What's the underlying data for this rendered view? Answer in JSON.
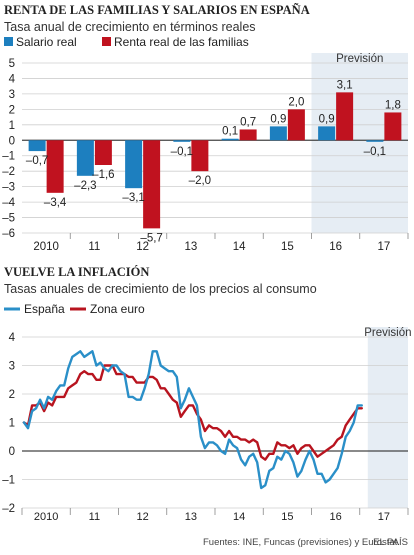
{
  "colors": {
    "salario": "#1d7fbf",
    "renta": "#c0121f",
    "espana": "#2a8fc8",
    "euro": "#b8141f",
    "forecast_bg": "#e6edf4",
    "grid": "#cfcfcf",
    "zero_line": "#444444",
    "text": "#222222"
  },
  "chart_data": [
    {
      "type": "bar",
      "title": "RENTA DE LAS FAMILIAS Y SALARIOS EN ESPAÑA",
      "subtitle": "Tasa anual de crecimiento en términos reales",
      "categories": [
        "2010",
        "11",
        "12",
        "13",
        "14",
        "15",
        "16",
        "17"
      ],
      "series": [
        {
          "name": "Salario real",
          "values": [
            -0.7,
            -2.3,
            -3.1,
            -0.1,
            0.1,
            0.9,
            0.9,
            -0.1
          ],
          "labels": [
            "–0,7",
            "–2,3",
            "–3,1",
            "–0,1",
            "0,1",
            "0,9",
            "0,9",
            "–0,1"
          ]
        },
        {
          "name": "Renta real de las familias",
          "values": [
            -3.4,
            -1.6,
            -5.7,
            -2.0,
            0.7,
            2.0,
            3.1,
            1.8
          ],
          "labels": [
            "–3,4",
            "–1,6",
            "–5,7",
            "–2,0",
            "0,7",
            "2,0",
            "3,1",
            "1,8"
          ]
        }
      ],
      "ylim": [
        -6,
        5
      ],
      "yticks": [
        5,
        4,
        3,
        2,
        1,
        0,
        -1,
        -2,
        -3,
        -4,
        -5,
        -6
      ],
      "ytick_labels": [
        "5",
        "4",
        "3",
        "2",
        "1",
        "0",
        "–1",
        "–2",
        "–3",
        "–4",
        "–5",
        "–6"
      ],
      "forecast_label": "Previsión",
      "forecast_categories": [
        "16",
        "17"
      ],
      "grid": true,
      "legend": "top-left"
    },
    {
      "type": "line",
      "title": "VUELVE LA INFLACIÓN",
      "subtitle": "Tasas anuales de crecimiento de los precios al consumo",
      "x_tick_labels": [
        "2010",
        "11",
        "12",
        "13",
        "14",
        "15",
        "16",
        "17"
      ],
      "x_start": "2010-01",
      "series": [
        {
          "name": "España",
          "values": [
            1.0,
            0.8,
            1.4,
            1.5,
            1.8,
            1.5,
            1.9,
            1.8,
            2.1,
            2.3,
            2.3,
            2.9,
            3.3,
            3.4,
            3.5,
            3.3,
            3.4,
            3.5,
            3.0,
            3.1,
            2.9,
            2.8,
            3.0,
            3.0,
            2.8,
            2.7,
            1.9,
            1.9,
            1.8,
            1.8,
            2.2,
            2.7,
            3.5,
            3.5,
            3.0,
            2.9,
            2.8,
            2.8,
            2.6,
            1.5,
            1.8,
            2.2,
            1.9,
            1.6,
            0.5,
            0.1,
            0.3,
            0.3,
            0.2,
            0.0,
            -0.1,
            0.4,
            0.2,
            0.1,
            -0.3,
            -0.5,
            -0.2,
            -0.1,
            -0.4,
            -1.3,
            -1.2,
            -0.7,
            -0.6,
            -0.2,
            -0.3,
            0.0,
            -0.1,
            -0.4,
            -0.9,
            -0.7,
            -0.3,
            0.0,
            -0.3,
            -0.8,
            -0.8,
            -1.1,
            -1.0,
            -0.8,
            -0.6,
            -0.1,
            0.5,
            0.7,
            1.0,
            1.6,
            1.6
          ],
          "end_label": "",
          "start_value": 0.6
        },
        {
          "name": "Zona euro",
          "values": [
            1.0,
            0.9,
            1.6,
            1.6,
            1.7,
            1.4,
            1.7,
            1.6,
            1.9,
            1.9,
            1.9,
            2.2,
            2.3,
            2.4,
            2.7,
            2.8,
            2.7,
            2.7,
            2.5,
            2.5,
            3.0,
            3.0,
            3.0,
            2.7,
            2.7,
            2.7,
            2.6,
            2.6,
            2.4,
            2.4,
            2.4,
            2.6,
            2.6,
            2.5,
            2.2,
            2.2,
            2.0,
            1.8,
            1.7,
            1.2,
            1.4,
            1.6,
            1.6,
            1.3,
            1.1,
            0.7,
            0.9,
            0.8,
            0.8,
            0.7,
            0.5,
            0.7,
            0.5,
            0.5,
            0.4,
            0.4,
            0.3,
            0.4,
            0.3,
            -0.2,
            -0.3,
            -0.1,
            -0.1,
            0.3,
            0.2,
            0.2,
            0.1,
            0.2,
            -0.1,
            0.1,
            0.2,
            0.2,
            0.0,
            -0.2,
            -0.1,
            0.0,
            0.1,
            0.2,
            0.4,
            0.5,
            0.9,
            1.1,
            1.3,
            1.5,
            1.5
          ],
          "end_label": ""
        }
      ],
      "ylim": [
        -2,
        4
      ],
      "yticks": [
        4,
        3,
        2,
        1,
        0,
        -1,
        -2
      ],
      "ytick_labels": [
        "4",
        "3",
        "2",
        "1",
        "0",
        "–1",
        "–2"
      ],
      "forecast_label": "Previsión",
      "grid": true,
      "legend": "top-left"
    }
  ],
  "legend_line": {
    "espana": "España",
    "euro": "Zona euro"
  },
  "footer": {
    "source": "Fuentes: INE, Funcas (previsiones) y Eurostat.",
    "brand": "EL PAÍS"
  }
}
